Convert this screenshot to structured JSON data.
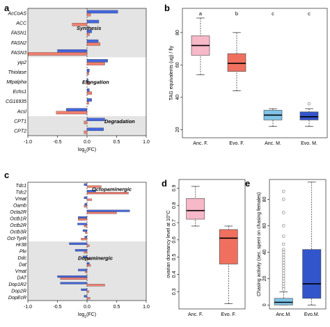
{
  "colors": {
    "evo": "#f08070",
    "anc": "#4466dd",
    "region": "#e4e4e4",
    "anc_f_box": "#f7b8c8",
    "evo_f_box": "#f07060",
    "anc_m_box": "#7fc4e8",
    "evo_m_box": "#3355cc"
  },
  "chart_data": [
    {
      "panel": "a",
      "type": "bar",
      "orientation": "horizontal",
      "genes": [
        "AcCoAS",
        "ACC",
        "FASN1",
        "FASN2",
        "FASN3",
        "yip2",
        "Thiolase",
        "Mtpalpha",
        "Echs1",
        "CG16935",
        "Acsl",
        "CPT1",
        "CPT2"
      ],
      "series": [
        {
          "values": [
            0.52,
            0.2,
            0.08,
            0.19,
            -0.5,
            0.35,
            0.04,
            0.02,
            0.04,
            0.08,
            -0.35,
            0.3,
            0.28
          ]
        },
        {
          "values": [
            0.06,
            -0.25,
            0.04,
            0.22,
            -1.0,
            0.3,
            0.03,
            0.05,
            0.08,
            0.03,
            -0.52,
            -0.05,
            -0.05
          ]
        }
      ],
      "xlim": [
        -1.0,
        1.0
      ],
      "xticks": [
        "-1.0",
        "-0.5",
        "0.0",
        "0.5",
        "1.0"
      ],
      "xlabel": "log2(FC)",
      "groups": [
        {
          "label": "Synthesis",
          "shaded": true
        },
        {
          "label": "Elongation",
          "shaded": false
        },
        {
          "label": "Degradation",
          "shaded": true
        }
      ]
    },
    {
      "panel": "b",
      "type": "box",
      "categories": [
        "Anc. F.",
        "Evo. F.",
        "Anc. M.",
        "Evo. M."
      ],
      "ylabel": "TAG equivalents (ug) / fly",
      "ylim": [
        15,
        95
      ],
      "yticks": [
        "20",
        "40",
        "60",
        "80"
      ],
      "letters": [
        "a",
        "b",
        "c",
        "c"
      ],
      "boxes": [
        {
          "min": 54,
          "q1": 66,
          "median": 72,
          "q3": 78,
          "max": 89,
          "outliers": []
        },
        {
          "min": 44,
          "q1": 56,
          "median": 61,
          "q3": 67,
          "max": 80,
          "outliers": []
        },
        {
          "min": 22,
          "q1": 26,
          "median": 29,
          "q3": 32,
          "max": 33,
          "outliers": []
        },
        {
          "min": 22,
          "q1": 26,
          "median": 28,
          "q3": 31,
          "max": 33,
          "outliers": [
            36
          ]
        }
      ]
    },
    {
      "panel": "c",
      "type": "bar",
      "orientation": "horizontal",
      "genes": [
        "Tdc1",
        "Tdc2",
        "Vmat",
        "Oamb",
        "Octa2R",
        "Octb1R",
        "Octb2R",
        "Octb3R",
        "Oct-TyrR",
        "Hr38",
        "Ple",
        "Ddc",
        "Dat",
        "Vmat",
        "DAT",
        "Dop1R2",
        "Dop2R",
        "DopEcR"
      ],
      "series": [
        {
          "values": [
            -0.05,
            0.15,
            -0.05,
            -0.04,
            0.72,
            -0.15,
            -0.16,
            -0.07,
            -0.04,
            -0.3,
            -0.2,
            -0.07,
            0.04,
            -0.15,
            -0.5,
            -0.45,
            -0.1,
            -0.05
          ]
        },
        {
          "values": [
            0.24,
            0.7,
            0.08,
            -0.05,
            0.5,
            -0.15,
            -0.05,
            -0.03,
            -0.1,
            0.04,
            -0.05,
            0.04,
            0.06,
            -0.03,
            -0.45,
            0.3,
            0.03,
            0.05
          ]
        }
      ],
      "xlim": [
        -1.0,
        1.0
      ],
      "xticks": [
        "-1.0",
        "-0.5",
        "0.0",
        "0.5",
        "1.0"
      ],
      "xlabel": "log2(FC)",
      "groups": [
        {
          "label": "Octopaminergic",
          "shaded": false
        },
        {
          "label": "Dopaminergic",
          "shaded": true
        }
      ]
    },
    {
      "panel": "d",
      "type": "box",
      "categories": [
        "Anc. F.",
        "Evo. F."
      ],
      "ylabel": "ovarian dormancy level at 10°C",
      "ylim": [
        0.2,
        0.95
      ],
      "yticks": [
        "0.3",
        "0.4",
        "0.5",
        "0.6",
        "0.7",
        "0.8",
        "0.9"
      ],
      "boxes": [
        {
          "min": 0.68,
          "q1": 0.72,
          "median": 0.77,
          "q3": 0.84,
          "max": 0.91,
          "outliers": []
        },
        {
          "min": 0.23,
          "q1": 0.46,
          "median": 0.61,
          "q3": 0.66,
          "max": 0.68,
          "outliers": []
        }
      ]
    },
    {
      "panel": "e",
      "type": "box",
      "categories": [
        "Anc.M.",
        "Evo.M."
      ],
      "ylabel": "Chasing activity (sec. spent on chasing females)",
      "ylim": [
        -3,
        95
      ],
      "yticks": [
        "0",
        "20",
        "40",
        "60",
        "80"
      ],
      "boxes": [
        {
          "min": 0,
          "q1": 0,
          "median": 2,
          "q3": 5,
          "max": 10,
          "outliers": [
            12,
            14,
            16,
            18,
            20,
            22,
            24,
            26,
            28,
            30,
            32,
            34,
            36,
            38,
            40,
            42,
            46,
            52,
            60,
            70,
            80,
            86
          ]
        },
        {
          "min": 0,
          "q1": 5,
          "median": 16,
          "q3": 42,
          "max": 93,
          "outliers": []
        }
      ]
    }
  ]
}
